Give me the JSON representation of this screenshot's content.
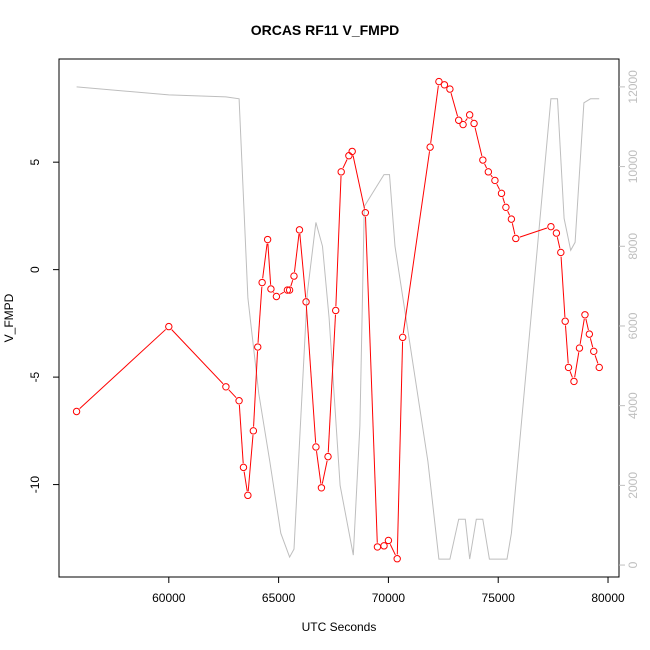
{
  "chart_data": {
    "type": "line",
    "title": "ORCAS RF11 V_FMPD",
    "xlabel": "UTC Seconds",
    "ylabel": "V_FMPD",
    "xlim": [
      55000,
      80500
    ],
    "ylim": [
      -14.3,
      9.8
    ],
    "y2lim": [
      -300,
      12700
    ],
    "x_ticks": [
      60000,
      65000,
      70000,
      75000,
      80000
    ],
    "y_ticks": [
      -10,
      -5,
      0,
      5
    ],
    "y2_ticks": [
      0,
      2000,
      4000,
      6000,
      8000,
      10000,
      12000
    ],
    "grid": false,
    "legend": "none",
    "series": [
      {
        "axis": "left",
        "color": "#ff0000",
        "style": "line+open-circles",
        "x": [
          55800,
          60000,
          62600,
          63200,
          63400,
          63600,
          63850,
          64050,
          64250,
          64500,
          64650,
          64900,
          65400,
          65500,
          65700,
          65950,
          66250,
          66700,
          66950,
          67250,
          67600,
          67850,
          68200,
          68350,
          68950,
          69500,
          69800,
          70000,
          70400,
          70650,
          71900,
          72300,
          72550,
          72800,
          73200,
          73400,
          73700,
          73900,
          74300,
          74550,
          74850,
          75150,
          75350,
          75600,
          75800,
          77400,
          77650,
          77850,
          78050,
          78200,
          78450,
          78700,
          78950,
          79150,
          79350,
          79600
        ],
        "y": [
          -6.6,
          -2.65,
          -5.45,
          -6.1,
          -9.2,
          -10.5,
          -7.5,
          -3.6,
          -0.6,
          1.4,
          -0.9,
          -1.25,
          -0.95,
          -0.95,
          -0.3,
          1.85,
          -1.5,
          -8.25,
          -10.15,
          -8.7,
          -1.9,
          4.55,
          5.3,
          5.5,
          2.65,
          -12.9,
          -12.85,
          -12.6,
          -13.45,
          -3.15,
          5.7,
          8.75,
          8.6,
          8.4,
          6.95,
          6.75,
          7.2,
          6.8,
          5.1,
          4.55,
          4.15,
          3.55,
          2.9,
          2.35,
          1.45,
          2.0,
          1.7,
          0.8,
          -2.4,
          -4.55,
          -5.2,
          -3.65,
          -2.1,
          -3.0,
          -3.8,
          -4.55
        ]
      },
      {
        "axis": "right",
        "color": "#bebebe",
        "style": "line",
        "x": [
          55800,
          60000,
          62600,
          63200,
          63600,
          64100,
          64600,
          65100,
          65500,
          65700,
          66300,
          66700,
          67000,
          67300,
          67800,
          68400,
          68700,
          68900,
          69800,
          70050,
          70300,
          71800,
          72300,
          72800,
          73200,
          73500,
          73700,
          74000,
          74300,
          74600,
          74900,
          75400,
          75600,
          77400,
          77700,
          78000,
          78300,
          78500,
          78900,
          79200,
          79600
        ],
        "y": [
          12000,
          11800,
          11750,
          11700,
          6700,
          4300,
          2600,
          800,
          200,
          400,
          6800,
          8600,
          8000,
          6200,
          2000,
          250,
          3500,
          9000,
          9800,
          9800,
          8000,
          2600,
          150,
          150,
          1150,
          1150,
          150,
          1150,
          1150,
          150,
          150,
          150,
          800,
          11700,
          11700,
          8700,
          7900,
          8100,
          11600,
          11700,
          11700
        ]
      }
    ]
  }
}
